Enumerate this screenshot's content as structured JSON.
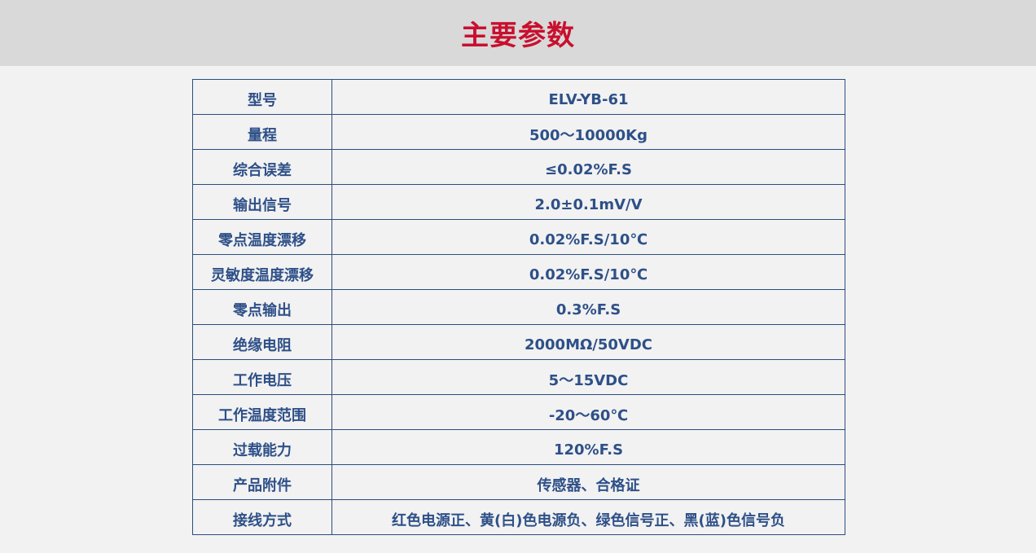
{
  "title": "主要参数",
  "params": [
    {
      "label": "型号",
      "value": "ELV-YB-61"
    },
    {
      "label": "量程",
      "value": "500～10000Kg"
    },
    {
      "label": "综合误差",
      "value": "≤0.02%F.S"
    },
    {
      "label": "输出信号",
      "value": "2.0±0.1mV/V"
    },
    {
      "label": "零点温度漂移",
      "value": "0.02%F.S/10℃"
    },
    {
      "label": "灵敏度温度漂移",
      "value": "0.02%F.S/10℃"
    },
    {
      "label": "零点输出",
      "value": "0.3%F.S"
    },
    {
      "label": "绝缘电阻",
      "value": "2000MΩ/50VDC"
    },
    {
      "label": "工作电压",
      "value": "5～15VDC"
    },
    {
      "label": "工作温度范围",
      "value": "-20～60℃"
    },
    {
      "label": "过载能力",
      "value": "120%F.S"
    },
    {
      "label": "产品附件",
      "value": "传感器、合格证"
    },
    {
      "label": "接线方式",
      "value": "红色电源正、黄(白)色电源负、绿色信号正、黑(蓝)色信号负"
    }
  ]
}
